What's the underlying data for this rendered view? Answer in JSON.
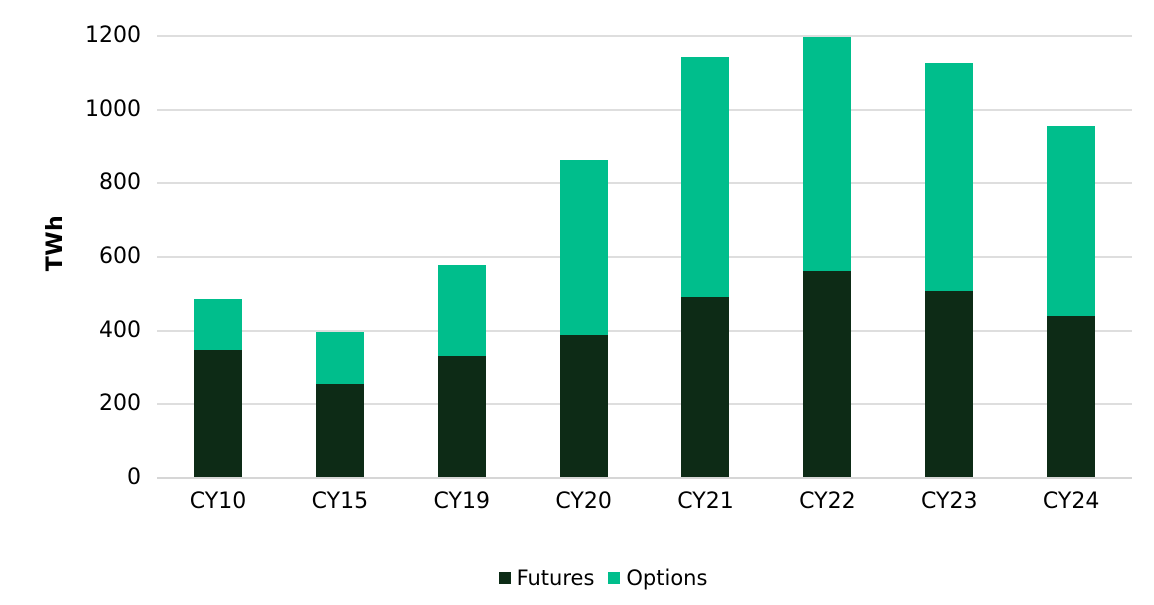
{
  "chart_data": {
    "type": "bar",
    "stacked": true,
    "title": "",
    "xlabel": "",
    "ylabel": "TWh",
    "ylim": [
      0,
      1200
    ],
    "yticks": [
      0,
      200,
      400,
      600,
      800,
      1000,
      1200
    ],
    "grid": true,
    "legend_position": "bottom-center",
    "categories": [
      "CY10",
      "CY15",
      "CY19",
      "CY20",
      "CY21",
      "CY22",
      "CY23",
      "CY24"
    ],
    "series": [
      {
        "name": "Futures",
        "color": "#0d2b16",
        "values": [
          344,
          253,
          329,
          386,
          489,
          560,
          506,
          438
        ]
      },
      {
        "name": "Options",
        "color": "#00be8c",
        "values": [
          140,
          142,
          247,
          475,
          650,
          635,
          617,
          515
        ]
      }
    ],
    "totals": [
      484,
      395,
      576,
      861,
      1139,
      1195,
      1123,
      953
    ]
  },
  "colors": {
    "background": "#ffffff",
    "gridline": "#dedede",
    "zero_axis": "#d6d6d6",
    "text": "#000000",
    "futures": "#0d2b16",
    "options": "#00be8c"
  }
}
